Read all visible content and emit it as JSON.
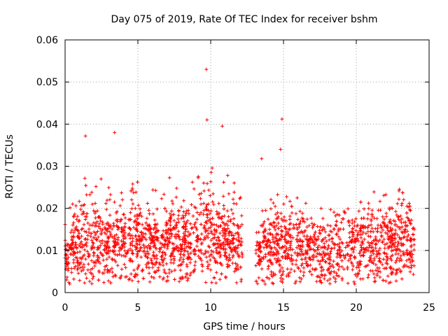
{
  "chart_data": {
    "type": "scatter",
    "title": "Day 075 of 2019, Rate Of TEC Index for receiver bshm",
    "xlabel": "GPS time / hours",
    "ylabel": "ROTI / TECUs",
    "xlim": [
      0,
      25
    ],
    "ylim": [
      0,
      0.06
    ],
    "xticks": [
      0,
      5,
      10,
      15,
      20,
      25
    ],
    "xtick_labels": [
      "0",
      "5",
      "10",
      "15",
      "20",
      "25"
    ],
    "yticks": [
      0,
      0.01,
      0.02,
      0.03,
      0.04,
      0.05,
      0.06
    ],
    "ytick_labels": [
      "0",
      "0.01",
      "0.02",
      "0.03",
      "0.04",
      "0.05",
      "0.06"
    ],
    "grid": true,
    "marker": "plus",
    "color": "#ff0000",
    "data_gap_hours": [
      12.2,
      13.1
    ],
    "series": [
      {
        "name": "ROTI",
        "notable_points": [
          {
            "x": 9.7,
            "y": 0.053
          },
          {
            "x": 9.75,
            "y": 0.041
          },
          {
            "x": 10.8,
            "y": 0.0395
          },
          {
            "x": 14.9,
            "y": 0.0412
          },
          {
            "x": 3.4,
            "y": 0.038
          },
          {
            "x": 1.4,
            "y": 0.0372
          },
          {
            "x": 14.8,
            "y": 0.034
          },
          {
            "x": 13.5,
            "y": 0.0318
          }
        ],
        "profile": [
          {
            "x": 0,
            "mean": 0.0085,
            "upper": 0.022
          },
          {
            "x": 1,
            "mean": 0.012,
            "upper": 0.03
          },
          {
            "x": 2,
            "mean": 0.011,
            "upper": 0.027
          },
          {
            "x": 3,
            "mean": 0.0115,
            "upper": 0.03
          },
          {
            "x": 4,
            "mean": 0.012,
            "upper": 0.026
          },
          {
            "x": 5,
            "mean": 0.012,
            "upper": 0.028
          },
          {
            "x": 6,
            "mean": 0.011,
            "upper": 0.025
          },
          {
            "x": 7,
            "mean": 0.012,
            "upper": 0.029
          },
          {
            "x": 8,
            "mean": 0.011,
            "upper": 0.025
          },
          {
            "x": 9,
            "mean": 0.0125,
            "upper": 0.028
          },
          {
            "x": 10,
            "mean": 0.013,
            "upper": 0.03
          },
          {
            "x": 11,
            "mean": 0.012,
            "upper": 0.029
          },
          {
            "x": 12,
            "mean": 0.011,
            "upper": 0.025
          },
          {
            "x": 13.1,
            "mean": 0.009,
            "upper": 0.02
          },
          {
            "x": 14,
            "mean": 0.011,
            "upper": 0.023
          },
          {
            "x": 15,
            "mean": 0.012,
            "upper": 0.024
          },
          {
            "x": 16,
            "mean": 0.011,
            "upper": 0.023
          },
          {
            "x": 17,
            "mean": 0.01,
            "upper": 0.021
          },
          {
            "x": 18,
            "mean": 0.0095,
            "upper": 0.02
          },
          {
            "x": 19,
            "mean": 0.01,
            "upper": 0.022
          },
          {
            "x": 20,
            "mean": 0.011,
            "upper": 0.022
          },
          {
            "x": 21,
            "mean": 0.0115,
            "upper": 0.024
          },
          {
            "x": 22,
            "mean": 0.012,
            "upper": 0.026
          },
          {
            "x": 23,
            "mean": 0.0115,
            "upper": 0.025
          },
          {
            "x": 24,
            "mean": 0.01,
            "upper": 0.02
          }
        ],
        "min_value": 0.002,
        "x_range": [
          0,
          24
        ],
        "sample_count": 2600
      }
    ]
  }
}
